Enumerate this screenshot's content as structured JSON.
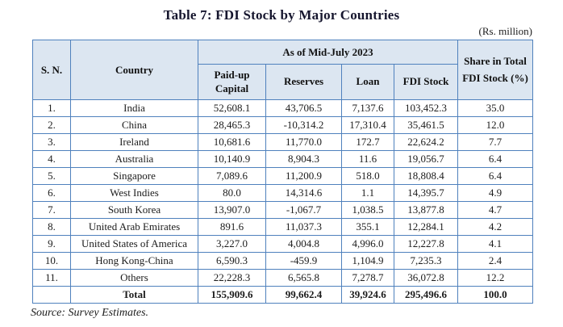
{
  "title": "Table 7: FDI Stock by Major Countries",
  "unit_note": "(Rs. million)",
  "source": "Source: Survey Estimates.",
  "colors": {
    "header_bg": "#dce6f1",
    "border_blue": "#4f81bd",
    "text": "#1c1c1c"
  },
  "table": {
    "header": {
      "sn": "S. N.",
      "country": "Country",
      "group": "As of Mid-July 2023",
      "paid_up": "Paid-up Capital",
      "reserves": "Reserves",
      "loan": "Loan",
      "fdi_stock": "FDI Stock",
      "share": "Share in Total FDI Stock (%)"
    },
    "columns": [
      "sn",
      "country",
      "paid_up",
      "reserves",
      "loan",
      "fdi_stock",
      "share"
    ],
    "rows": [
      {
        "sn": "1.",
        "country": "India",
        "paid_up": "52,608.1",
        "reserves": "43,706.5",
        "loan": "7,137.6",
        "fdi_stock": "103,452.3",
        "share": "35.0"
      },
      {
        "sn": "2.",
        "country": "China",
        "paid_up": "28,465.3",
        "reserves": "-10,314.2",
        "loan": "17,310.4",
        "fdi_stock": "35,461.5",
        "share": "12.0"
      },
      {
        "sn": "3.",
        "country": "Ireland",
        "paid_up": "10,681.6",
        "reserves": "11,770.0",
        "loan": "172.7",
        "fdi_stock": "22,624.2",
        "share": "7.7"
      },
      {
        "sn": "4.",
        "country": "Australia",
        "paid_up": "10,140.9",
        "reserves": "8,904.3",
        "loan": "11.6",
        "fdi_stock": "19,056.7",
        "share": "6.4"
      },
      {
        "sn": "5.",
        "country": "Singapore",
        "paid_up": "7,089.6",
        "reserves": "11,200.9",
        "loan": "518.0",
        "fdi_stock": "18,808.4",
        "share": "6.4"
      },
      {
        "sn": "6.",
        "country": "West Indies",
        "paid_up": "80.0",
        "reserves": "14,314.6",
        "loan": "1.1",
        "fdi_stock": "14,395.7",
        "share": "4.9"
      },
      {
        "sn": "7.",
        "country": "South Korea",
        "paid_up": "13,907.0",
        "reserves": "-1,067.7",
        "loan": "1,038.5",
        "fdi_stock": "13,877.8",
        "share": "4.7"
      },
      {
        "sn": "8.",
        "country": "United Arab Emirates",
        "paid_up": "891.6",
        "reserves": "11,037.3",
        "loan": "355.1",
        "fdi_stock": "12,284.1",
        "share": "4.2"
      },
      {
        "sn": "9.",
        "country": "United States of America",
        "paid_up": "3,227.0",
        "reserves": "4,004.8",
        "loan": "4,996.0",
        "fdi_stock": "12,227.8",
        "share": "4.1"
      },
      {
        "sn": "10.",
        "country": "Hong Kong-China",
        "paid_up": "6,590.3",
        "reserves": "-459.9",
        "loan": "1,104.9",
        "fdi_stock": "7,235.3",
        "share": "2.4"
      },
      {
        "sn": "11.",
        "country": "Others",
        "paid_up": "22,228.3",
        "reserves": "6,565.8",
        "loan": "7,278.7",
        "fdi_stock": "36,072.8",
        "share": "12.2"
      }
    ],
    "total": {
      "sn": "",
      "label": "Total",
      "paid_up": "155,909.6",
      "reserves": "99,662.4",
      "loan": "39,924.6",
      "fdi_stock": "295,496.6",
      "share": "100.0"
    }
  }
}
